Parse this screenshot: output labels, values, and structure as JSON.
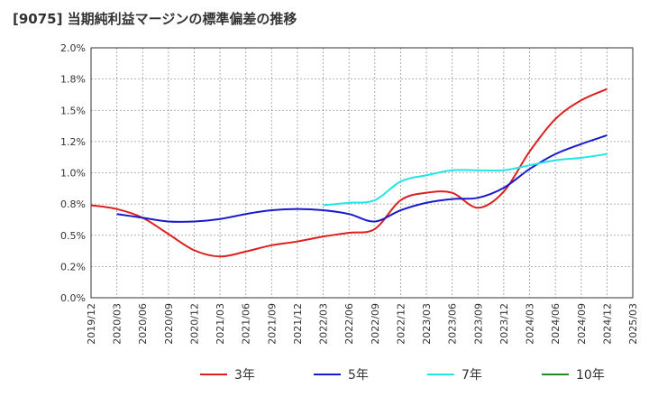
{
  "title": "[9075]  当期純利益マージンの標準偏差の推移",
  "chart_data": {
    "type": "line",
    "x": [
      "2019/12",
      "2020/03",
      "2020/06",
      "2020/09",
      "2020/12",
      "2021/03",
      "2021/06",
      "2021/09",
      "2021/12",
      "2022/03",
      "2022/06",
      "2022/09",
      "2022/12",
      "2023/03",
      "2023/06",
      "2023/09",
      "2023/12",
      "2024/03",
      "2024/06",
      "2024/09",
      "2024/12",
      "2025/03"
    ],
    "ylim": [
      0,
      2.0
    ],
    "yticks": [
      0,
      0.25,
      0.5,
      0.75,
      1.0,
      1.25,
      1.5,
      1.75,
      2.0
    ],
    "ytick_labels": [
      "0.0%",
      "0.2%",
      "0.5%",
      "0.8%",
      "1.0%",
      "1.2%",
      "1.5%",
      "1.8%",
      "2.0%"
    ],
    "grid": true,
    "legend_position": "bottom",
    "series": [
      {
        "name": "3年",
        "color": "#dd1f1f",
        "points": [
          [
            "2019/12",
            0.74
          ],
          [
            "2020/03",
            0.71
          ],
          [
            "2020/06",
            0.64
          ],
          [
            "2020/09",
            0.51
          ],
          [
            "2020/12",
            0.38
          ],
          [
            "2021/03",
            0.33
          ],
          [
            "2021/06",
            0.37
          ],
          [
            "2021/09",
            0.42
          ],
          [
            "2021/12",
            0.45
          ],
          [
            "2022/03",
            0.49
          ],
          [
            "2022/06",
            0.52
          ],
          [
            "2022/09",
            0.55
          ],
          [
            "2022/12",
            0.78
          ],
          [
            "2023/03",
            0.84
          ],
          [
            "2023/06",
            0.84
          ],
          [
            "2023/09",
            0.72
          ],
          [
            "2023/12",
            0.85
          ],
          [
            "2024/03",
            1.17
          ],
          [
            "2024/06",
            1.43
          ],
          [
            "2024/09",
            1.58
          ],
          [
            "2024/12",
            1.67
          ]
        ]
      },
      {
        "name": "5年",
        "color": "#1a1acc",
        "points": [
          [
            "2020/03",
            0.67
          ],
          [
            "2020/06",
            0.64
          ],
          [
            "2020/09",
            0.61
          ],
          [
            "2020/12",
            0.61
          ],
          [
            "2021/03",
            0.63
          ],
          [
            "2021/06",
            0.67
          ],
          [
            "2021/09",
            0.7
          ],
          [
            "2021/12",
            0.71
          ],
          [
            "2022/03",
            0.7
          ],
          [
            "2022/06",
            0.67
          ],
          [
            "2022/09",
            0.61
          ],
          [
            "2022/12",
            0.7
          ],
          [
            "2023/03",
            0.76
          ],
          [
            "2023/06",
            0.79
          ],
          [
            "2023/09",
            0.8
          ],
          [
            "2023/12",
            0.88
          ],
          [
            "2024/03",
            1.03
          ],
          [
            "2024/06",
            1.15
          ],
          [
            "2024/09",
            1.23
          ],
          [
            "2024/12",
            1.3
          ]
        ]
      },
      {
        "name": "7年",
        "color": "#22e5e5",
        "points": [
          [
            "2022/03",
            0.74
          ],
          [
            "2022/06",
            0.76
          ],
          [
            "2022/09",
            0.78
          ],
          [
            "2022/12",
            0.93
          ],
          [
            "2023/03",
            0.98
          ],
          [
            "2023/06",
            1.02
          ],
          [
            "2023/09",
            1.02
          ],
          [
            "2023/12",
            1.02
          ],
          [
            "2024/03",
            1.06
          ],
          [
            "2024/06",
            1.1
          ],
          [
            "2024/09",
            1.12
          ],
          [
            "2024/12",
            1.15
          ]
        ]
      },
      {
        "name": "10年",
        "color": "#228b22",
        "points": []
      }
    ]
  }
}
